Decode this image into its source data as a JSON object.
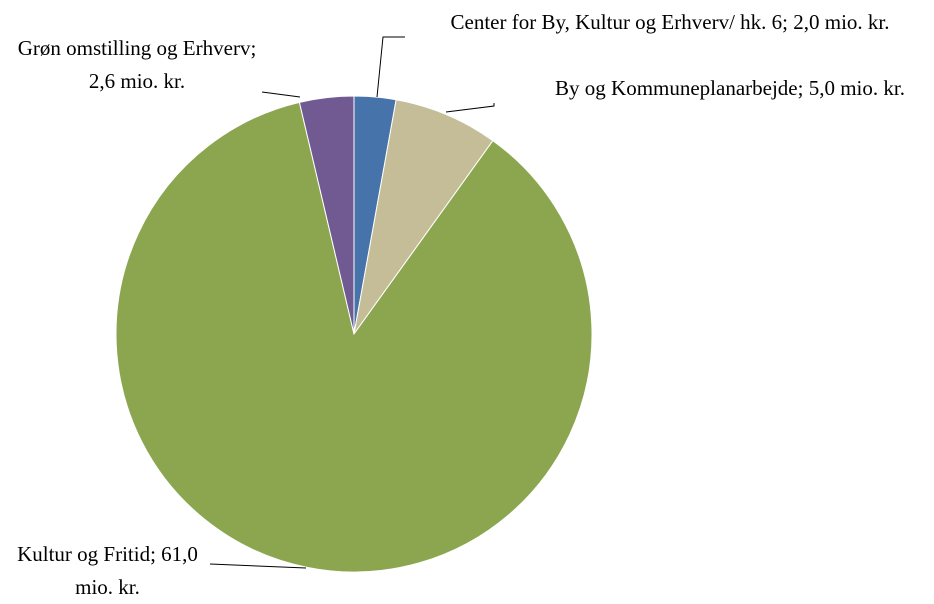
{
  "chart_data": {
    "type": "pie",
    "values": [
      2.0,
      5.0,
      61.0,
      2.6
    ],
    "value_labels": [
      "Center for By, Kultur og Erhverv/ hk. 6; 2,0 mio. kr.",
      "By og Kommuneplanarbejde; 5,0 mio. kr.",
      "Kultur og Fritid; 61,0 mio. kr.",
      "Grøn omstilling og Erhverv; 2,6 mio. kr."
    ],
    "colors": [
      "#4673a9",
      "#c4bd97",
      "#8ba64f",
      "#715a92"
    ]
  }
}
